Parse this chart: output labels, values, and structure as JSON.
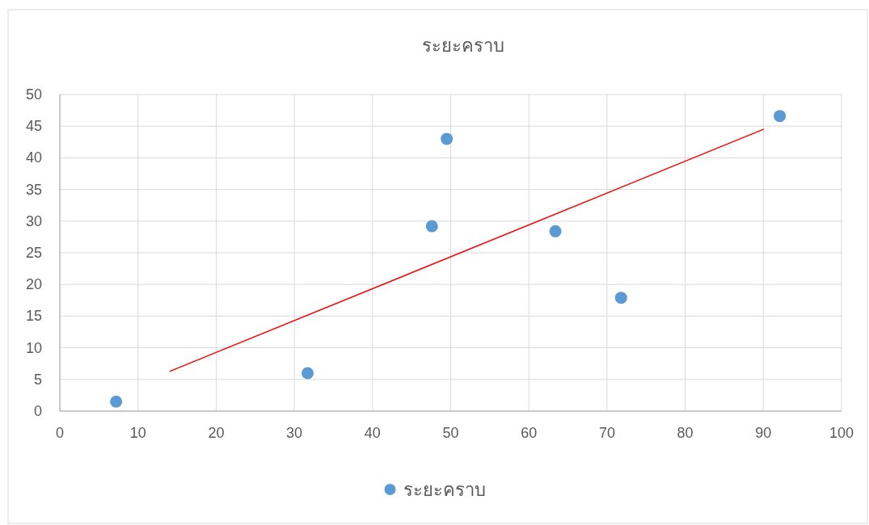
{
  "chart_data": {
    "type": "scatter",
    "title": "ระยะคราบ",
    "xlim": [
      0,
      100
    ],
    "ylim": [
      0,
      50
    ],
    "xticks": [
      0,
      10,
      20,
      30,
      40,
      50,
      60,
      70,
      80,
      90,
      100
    ],
    "yticks": [
      0,
      5,
      10,
      15,
      20,
      25,
      30,
      35,
      40,
      45,
      50
    ],
    "grid": true,
    "legend": "bottom",
    "marker": "circle",
    "series": [
      {
        "name": "ระยะคราบ",
        "color": "#5b9bd5",
        "x": [
          7.2,
          31.7,
          47.6,
          49.5,
          63.4,
          71.8,
          92.1
        ],
        "values": [
          1.5,
          6.0,
          29.2,
          43.0,
          28.4,
          17.9,
          46.6
        ]
      },
      {
        "type": "line",
        "color": "#ff0000",
        "marker": "none",
        "x": [
          14.1,
          90.0
        ],
        "values": [
          6.3,
          44.5
        ]
      }
    ]
  }
}
